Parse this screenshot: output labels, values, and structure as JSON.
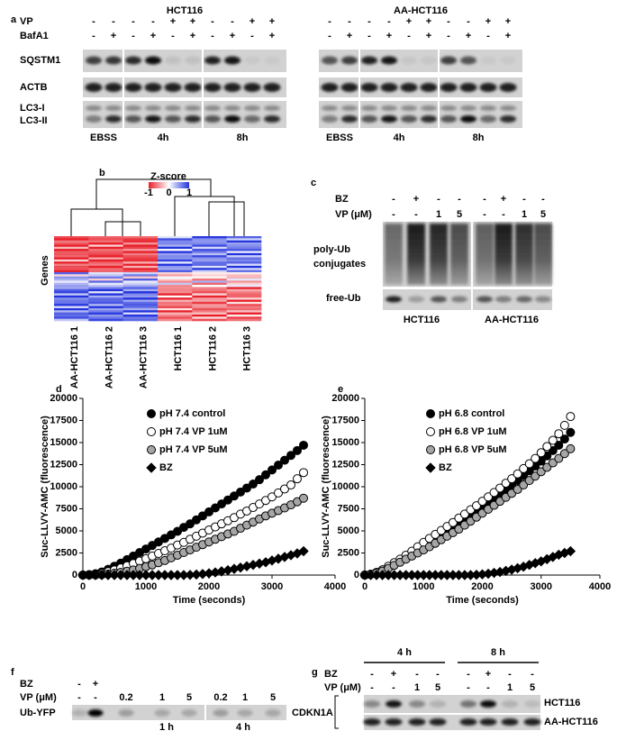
{
  "panel_a": {
    "label": "a",
    "row_labels": [
      "VP",
      "BafA1"
    ],
    "band_labels": [
      "SQSTM1",
      "ACTB",
      "LC3-I",
      "LC3-II"
    ],
    "blocks": [
      {
        "title": "HCT116",
        "signs": [
          [
            "-",
            "-",
            "-",
            "-",
            "+",
            "+",
            "-",
            "-",
            "+",
            "+"
          ],
          [
            "-",
            "+",
            "-",
            "+",
            "-",
            "+",
            "-",
            "+",
            "-",
            "+"
          ]
        ],
        "groups": [
          "EBSS",
          "4h",
          "8h"
        ]
      },
      {
        "title": "AA-HCT116",
        "signs": [
          [
            "-",
            "-",
            "-",
            "-",
            "+",
            "+",
            "-",
            "-",
            "+",
            "+"
          ],
          [
            "-",
            "+",
            "-",
            "+",
            "-",
            "+",
            "-",
            "+",
            "-",
            "+"
          ]
        ],
        "groups": [
          "EBSS",
          "4h",
          "8h"
        ]
      }
    ]
  },
  "panel_b": {
    "label": "b",
    "legend_title": "Z-score",
    "legend_ticks": [
      "-1",
      "0",
      "1"
    ],
    "y_label": "Genes",
    "columns": [
      "AA-HCT116 1",
      "AA-HCT116 2",
      "AA-HCT116 3",
      "HCT116 1",
      "HCT116 2",
      "HCT116 3"
    ]
  },
  "panel_c": {
    "label": "c",
    "row_labels": [
      "BZ",
      "VP (μM)"
    ],
    "signs": [
      [
        "-",
        "+",
        "-",
        "-",
        "-",
        "+",
        "-",
        "-"
      ],
      [
        "-",
        "-",
        "1",
        "5",
        "-",
        "-",
        "1",
        "5"
      ]
    ],
    "band_labels": [
      [
        "poly-Ub",
        "conjugates"
      ],
      [
        "free-Ub"
      ]
    ],
    "groups": [
      "HCT116",
      "AA-HCT116"
    ]
  },
  "chart_data": [
    {
      "type": "scatter",
      "label": "d",
      "x_label": "Time (seconds)",
      "y_label": "Suc-LLVY-AMC (fluorescence)",
      "x": [
        0,
        100,
        200,
        300,
        400,
        500,
        600,
        700,
        800,
        900,
        1000,
        1100,
        1200,
        1300,
        1400,
        1500,
        1600,
        1700,
        1800,
        1900,
        2000,
        2100,
        2200,
        2300,
        2400,
        2500,
        2600,
        2700,
        2800,
        2900,
        3000,
        3100,
        3200,
        3300,
        3400,
        3500
      ],
      "xlim": [
        0,
        4000
      ],
      "xticks": [
        0,
        1000,
        2000,
        3000,
        4000
      ],
      "ylim": [
        0,
        20000
      ],
      "yticks": [
        0,
        2500,
        5000,
        7500,
        10000,
        12500,
        15000,
        17500,
        20000
      ],
      "edgecolor": "#000000",
      "series": [
        {
          "name": "pH 7.4 control",
          "color": "#000000",
          "marker": "circle",
          "values": [
            0,
            50,
            150,
            350,
            650,
            1000,
            1350,
            1750,
            2150,
            2550,
            2950,
            3350,
            3750,
            4150,
            4550,
            4950,
            5400,
            5800,
            6250,
            6700,
            7150,
            7600,
            8050,
            8500,
            8950,
            9400,
            9850,
            10300,
            10800,
            11350,
            11900,
            12450,
            13000,
            13550,
            14100,
            14700
          ]
        },
        {
          "name": "pH 7.4 VP 1uM",
          "color": "#ffffff",
          "marker": "circle",
          "values": [
            0,
            30,
            100,
            200,
            380,
            580,
            800,
            1050,
            1300,
            1580,
            1850,
            2150,
            2450,
            2750,
            3050,
            3400,
            3700,
            4050,
            4400,
            4750,
            5100,
            5450,
            5800,
            6150,
            6500,
            6900,
            7250,
            7650,
            8050,
            8450,
            8850,
            9300,
            9750,
            10200,
            10900,
            11600
          ]
        },
        {
          "name": "pH 7.4 VP 5uM",
          "color": "#a6a6a6",
          "marker": "circle",
          "values": [
            0,
            0,
            20,
            60,
            120,
            200,
            300,
            430,
            580,
            750,
            950,
            1150,
            1400,
            1650,
            1950,
            2250,
            2550,
            2850,
            3150,
            3450,
            3750,
            4050,
            4350,
            4650,
            4950,
            5300,
            5650,
            6000,
            6350,
            6700,
            7000,
            7300,
            7600,
            7950,
            8300,
            8700
          ]
        },
        {
          "name": "BZ",
          "color": "#000000",
          "marker": "diamond",
          "values": [
            0,
            0,
            0,
            0,
            0,
            0,
            0,
            0,
            0,
            0,
            0,
            0,
            0,
            0,
            0,
            0,
            0,
            20,
            60,
            120,
            200,
            300,
            420,
            550,
            700,
            850,
            1000,
            1150,
            1300,
            1450,
            1650,
            1850,
            2050,
            2250,
            2450,
            2700
          ]
        }
      ]
    },
    {
      "type": "scatter",
      "label": "e",
      "x_label": "Time (seconds)",
      "y_label": "Suc-LLVY-AMC (fluorescence)",
      "x": [
        0,
        100,
        200,
        300,
        400,
        500,
        600,
        700,
        800,
        900,
        1000,
        1100,
        1200,
        1300,
        1400,
        1500,
        1600,
        1700,
        1800,
        1900,
        2000,
        2100,
        2200,
        2300,
        2400,
        2500,
        2600,
        2700,
        2800,
        2900,
        3000,
        3100,
        3200,
        3300,
        3400,
        3500
      ],
      "xlim": [
        0,
        4000
      ],
      "xticks": [
        0,
        1000,
        2000,
        3000,
        4000
      ],
      "ylim": [
        0,
        20000
      ],
      "yticks": [
        0,
        2500,
        5000,
        7500,
        10000,
        12500,
        15000,
        17500,
        20000
      ],
      "edgecolor": "#000000",
      "series": [
        {
          "name": "pH 6.8 control",
          "color": "#000000",
          "marker": "circle",
          "values": [
            0,
            80,
            250,
            500,
            850,
            1200,
            1550,
            1900,
            2300,
            2700,
            3100,
            3500,
            3900,
            4350,
            4800,
            5250,
            5700,
            6150,
            6650,
            7100,
            7600,
            8100,
            8600,
            9100,
            9600,
            10150,
            10700,
            11250,
            11800,
            12350,
            12900,
            13500,
            14100,
            14700,
            15400,
            16150
          ]
        },
        {
          "name": "pH 6.8 VP 1uM",
          "color": "#ffffff",
          "marker": "circle",
          "values": [
            0,
            100,
            300,
            600,
            1000,
            1400,
            1800,
            2250,
            2700,
            3200,
            3700,
            4150,
            4600,
            5050,
            5500,
            5950,
            6450,
            6900,
            7400,
            7850,
            8350,
            8850,
            9350,
            9850,
            10400,
            10900,
            11450,
            12050,
            12600,
            13200,
            13850,
            14550,
            15250,
            16000,
            16950,
            17950
          ]
        },
        {
          "name": "pH 6.8 VP 5uM",
          "color": "#a6a6a6",
          "marker": "circle",
          "values": [
            0,
            80,
            230,
            450,
            750,
            1100,
            1450,
            1800,
            2150,
            2500,
            2850,
            3200,
            3600,
            4000,
            4400,
            4800,
            5200,
            5650,
            6100,
            6550,
            7000,
            7450,
            7900,
            8350,
            8800,
            9250,
            9700,
            10200,
            10700,
            11200,
            11700,
            12200,
            12700,
            13200,
            13750,
            14300
          ]
        },
        {
          "name": "BZ",
          "color": "#000000",
          "marker": "diamond",
          "values": [
            0,
            0,
            0,
            0,
            0,
            0,
            0,
            0,
            0,
            0,
            0,
            0,
            0,
            0,
            0,
            0,
            0,
            0,
            0,
            30,
            80,
            150,
            250,
            350,
            480,
            620,
            780,
            950,
            1150,
            1350,
            1550,
            1800,
            2050,
            2300,
            2500,
            2700
          ]
        }
      ]
    }
  ],
  "panel_f": {
    "label": "f",
    "row_labels": [
      "BZ",
      "VP (μM)"
    ],
    "signs": [
      [
        "-",
        "+"
      ],
      [
        "-",
        "-",
        "0.2",
        "1",
        "5",
        "0.2",
        "1",
        "5"
      ]
    ],
    "band_label": "Ub-YFP",
    "groups": [
      "1 h",
      "4 h"
    ]
  },
  "panel_g": {
    "label": "g",
    "groups": [
      "4 h",
      "8 h"
    ],
    "row_labels": [
      "BZ",
      "VP (μM)"
    ],
    "signs": [
      [
        "-",
        "+",
        "-",
        "-",
        "-",
        "+",
        "-",
        "-"
      ],
      [
        "-",
        "-",
        "1",
        "5",
        "-",
        "-",
        "1",
        "5"
      ]
    ],
    "band_label": "CDKN1A",
    "lines": [
      "HCT116",
      "AA-HCT116"
    ]
  }
}
